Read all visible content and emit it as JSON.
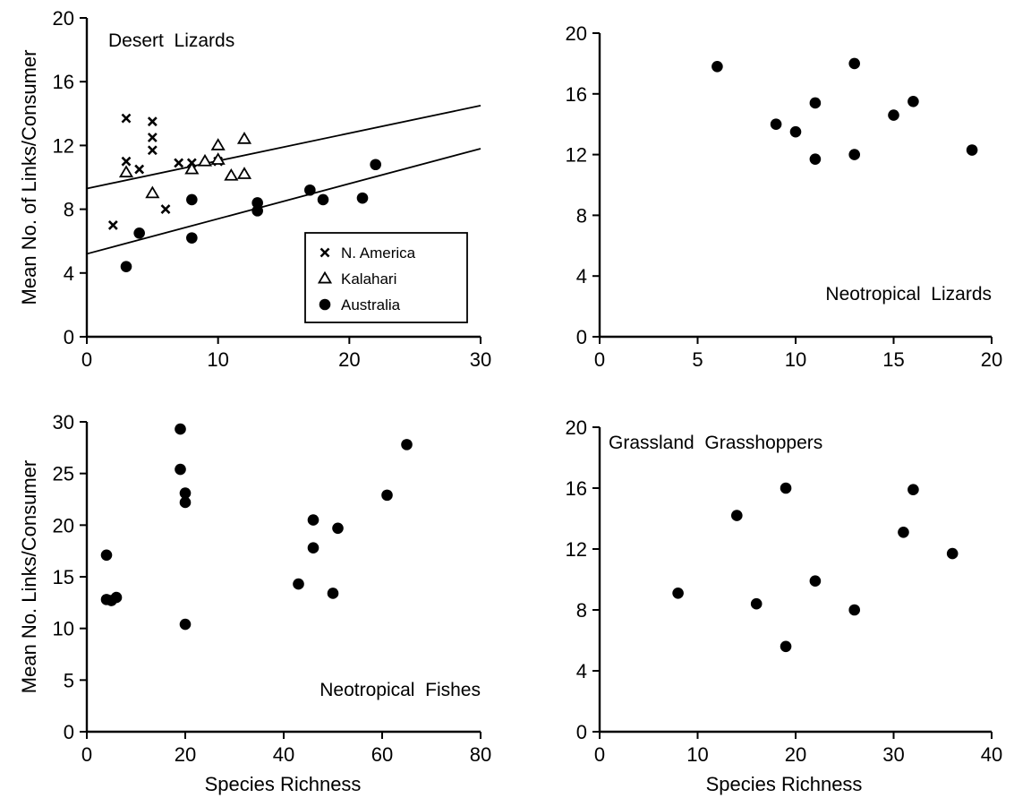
{
  "chart_data": [
    {
      "type": "scatter",
      "title": "Desert Lizards",
      "ylabel": "Mean No. of Links/Consumer",
      "xlabel": "",
      "xlim": [
        0,
        30
      ],
      "ylim": [
        0,
        20
      ],
      "xticks": [
        0,
        10,
        20,
        30
      ],
      "yticks": [
        0,
        4,
        8,
        12,
        16,
        20
      ],
      "grid": false,
      "legend_position": "bottom-right",
      "series": [
        {
          "name": "N. America",
          "marker": "x",
          "points": [
            [
              2,
              7.0
            ],
            [
              3,
              13.7
            ],
            [
              3,
              11.0
            ],
            [
              4,
              10.5
            ],
            [
              5,
              13.5
            ],
            [
              5,
              12.5
            ],
            [
              5,
              11.7
            ],
            [
              6,
              8.0
            ],
            [
              7,
              10.9
            ],
            [
              8,
              10.9
            ],
            [
              10,
              11.0
            ]
          ]
        },
        {
          "name": "Kalahari",
          "marker": "triangle",
          "points": [
            [
              3,
              10.3
            ],
            [
              5,
              9.0
            ],
            [
              8,
              10.5
            ],
            [
              9,
              11.0
            ],
            [
              10,
              12.0
            ],
            [
              10,
              11.1
            ],
            [
              11,
              10.1
            ],
            [
              12,
              12.4
            ],
            [
              12,
              10.2
            ]
          ]
        },
        {
          "name": "Australia",
          "marker": "circle",
          "points": [
            [
              3,
              4.4
            ],
            [
              4,
              6.5
            ],
            [
              8,
              6.2
            ],
            [
              8,
              8.6
            ],
            [
              13,
              8.4
            ],
            [
              13,
              7.9
            ],
            [
              17,
              9.2
            ],
            [
              18,
              8.6
            ],
            [
              21,
              8.7
            ],
            [
              22,
              10.8
            ]
          ]
        }
      ],
      "lines": [
        {
          "x": [
            0,
            30
          ],
          "y": [
            9.3,
            14.5
          ]
        },
        {
          "x": [
            0,
            30
          ],
          "y": [
            5.2,
            11.8
          ]
        }
      ]
    },
    {
      "type": "scatter",
      "title": "Neotropical Lizards",
      "ylabel": "",
      "xlabel": "",
      "xlim": [
        0,
        20
      ],
      "ylim": [
        0,
        20
      ],
      "xticks": [
        0,
        5,
        10,
        15,
        20
      ],
      "yticks": [
        0,
        4,
        8,
        12,
        16,
        20
      ],
      "grid": false,
      "title_position": "bottom-right",
      "series": [
        {
          "name": "",
          "marker": "circle",
          "points": [
            [
              6,
              17.8
            ],
            [
              9,
              14.0
            ],
            [
              10,
              13.5
            ],
            [
              11,
              15.4
            ],
            [
              11,
              11.7
            ],
            [
              13,
              18.0
            ],
            [
              13,
              12.0
            ],
            [
              15,
              14.6
            ],
            [
              16,
              15.5
            ],
            [
              19,
              12.3
            ]
          ]
        }
      ]
    },
    {
      "type": "scatter",
      "title": "Neotropical Fishes",
      "ylabel": "Mean No. Links/Consumer",
      "xlabel": "Species Richness",
      "xlim": [
        0,
        80
      ],
      "ylim": [
        0,
        30
      ],
      "xticks": [
        0,
        20,
        40,
        60,
        80
      ],
      "yticks": [
        0,
        5,
        10,
        15,
        20,
        25,
        30
      ],
      "grid": false,
      "title_position": "bottom-right",
      "series": [
        {
          "name": "",
          "marker": "circle",
          "points": [
            [
              4,
              17.1
            ],
            [
              4,
              12.8
            ],
            [
              5,
              12.7
            ],
            [
              6,
              13.0
            ],
            [
              19,
              29.3
            ],
            [
              19,
              25.4
            ],
            [
              20,
              23.1
            ],
            [
              20,
              22.2
            ],
            [
              20,
              10.4
            ],
            [
              43,
              14.3
            ],
            [
              46,
              20.5
            ],
            [
              46,
              17.8
            ],
            [
              50,
              13.4
            ],
            [
              51,
              19.7
            ],
            [
              61,
              22.9
            ],
            [
              65,
              27.8
            ]
          ]
        }
      ]
    },
    {
      "type": "scatter",
      "title": "Grassland Grasshoppers",
      "ylabel": "",
      "xlabel": "Species Richness",
      "xlim": [
        0,
        40
      ],
      "ylim": [
        0,
        20
      ],
      "xticks": [
        0,
        10,
        20,
        30,
        40
      ],
      "yticks": [
        0,
        4,
        8,
        12,
        16,
        20
      ],
      "grid": false,
      "series": [
        {
          "name": "",
          "marker": "circle",
          "points": [
            [
              8,
              9.1
            ],
            [
              14,
              14.2
            ],
            [
              16,
              8.4
            ],
            [
              19,
              16.0
            ],
            [
              19,
              5.6
            ],
            [
              22,
              9.9
            ],
            [
              26,
              8.0
            ],
            [
              31,
              13.1
            ],
            [
              32,
              15.9
            ],
            [
              36,
              11.7
            ]
          ]
        }
      ]
    }
  ]
}
